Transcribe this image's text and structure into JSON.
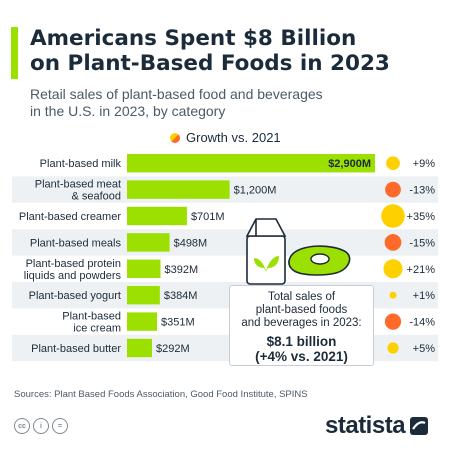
{
  "header": {
    "title": "Americans Spent $8 Billion\non Plant-Based Foods in 2023",
    "subtitle": "Retail sales of plant-based food and beverages\nin the U.S. in 2023, by category"
  },
  "legend": {
    "label": "Growth vs. 2021"
  },
  "total_box": {
    "label": "Total sales of\nplant-based foods\nand beverages in 2023:",
    "value": "$8.1 billion\n(+4% vs. 2021)"
  },
  "footer": {
    "sources": "Sources: Plant Based Foods Association, Good Food Institute, SPINS",
    "cc_icons": [
      "cc",
      "i",
      "="
    ],
    "brand": "statista"
  },
  "colors": {
    "bar": "#9be000",
    "growth_positive": "#ffd000",
    "growth_negative": "#ff6a2a",
    "row_alt": "#eef1f3",
    "text": "#1c2b39"
  },
  "chart_data": {
    "type": "bar",
    "orientation": "horizontal",
    "categories": [
      "Plant-based milk",
      "Plant-based meat\n& seafood",
      "Plant-based creamer",
      "Plant-based meals",
      "Plant-based protein\nliquids and powders",
      "Plant-based yogurt",
      "Plant-based\nice cream",
      "Plant-based butter"
    ],
    "values": [
      2900,
      1200,
      701,
      498,
      392,
      384,
      351,
      292
    ],
    "value_labels": [
      "$2,900M",
      "$1,200M",
      "$701M",
      "$498M",
      "$392M",
      "$384M",
      "$351M",
      "$292M"
    ],
    "units": "million USD",
    "growth_vs_2021": [
      9,
      -13,
      35,
      -15,
      21,
      1,
      -14,
      5
    ],
    "growth_labels": [
      "+9%",
      "-13%",
      "+35%",
      "-15%",
      "+21%",
      "+1%",
      "-14%",
      "+5%"
    ],
    "grid": false,
    "legend_placement": "top-center"
  }
}
